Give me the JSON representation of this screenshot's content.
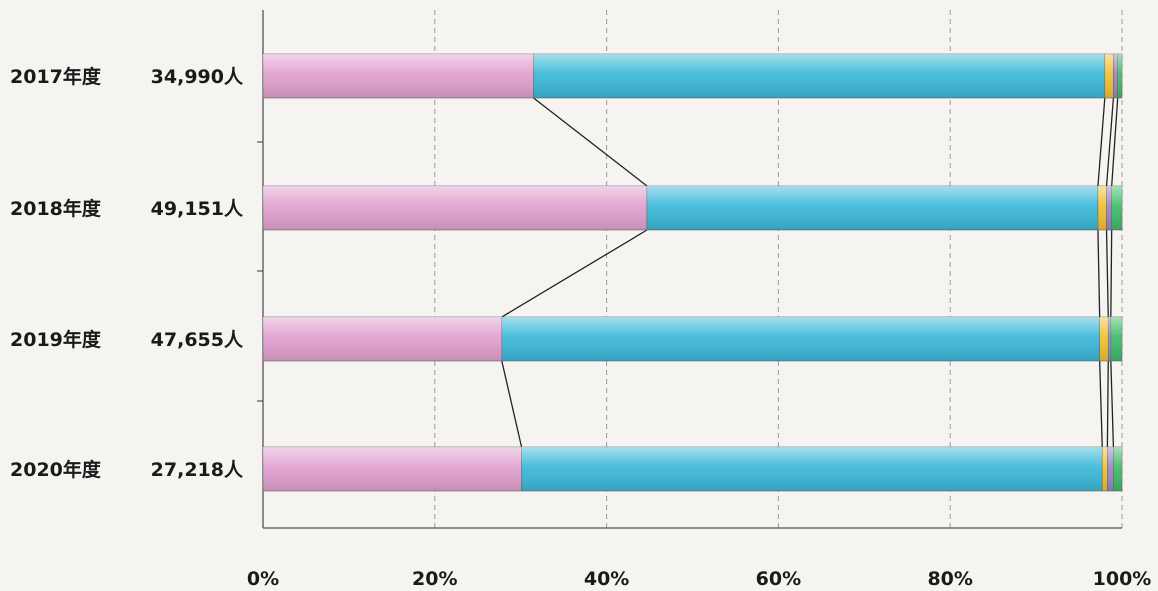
{
  "chart_data": {
    "type": "bar",
    "orientation": "horizontal",
    "stacked": true,
    "normalized_percent": true,
    "categories": [
      "2017年度",
      "2018年度",
      "2019年度",
      "2020年度"
    ],
    "totals": [
      "34,990人",
      "49,151人",
      "47,655人",
      "27,218人"
    ],
    "series": [
      {
        "color": "#e0a0cf",
        "values": [
          31.5,
          44.7,
          27.8,
          30.1
        ]
      },
      {
        "color": "#3ab8d8",
        "values": [
          66.5,
          52.5,
          69.6,
          67.6
        ]
      },
      {
        "color": "#f0c030",
        "values": [
          1.0,
          1.0,
          1.0,
          0.6
        ]
      },
      {
        "color": "#9a86c0",
        "values": [
          0.5,
          0.6,
          0.3,
          0.7
        ]
      },
      {
        "color": "#3dbb6a",
        "values": [
          0.5,
          1.2,
          1.3,
          1.0
        ]
      }
    ],
    "xlim": [
      0,
      100
    ],
    "x_ticks": [
      "0%",
      "20%",
      "40%",
      "60%",
      "80%",
      "100%"
    ],
    "grid": "vertical dashed",
    "legend": "none",
    "connector_lines": true
  }
}
